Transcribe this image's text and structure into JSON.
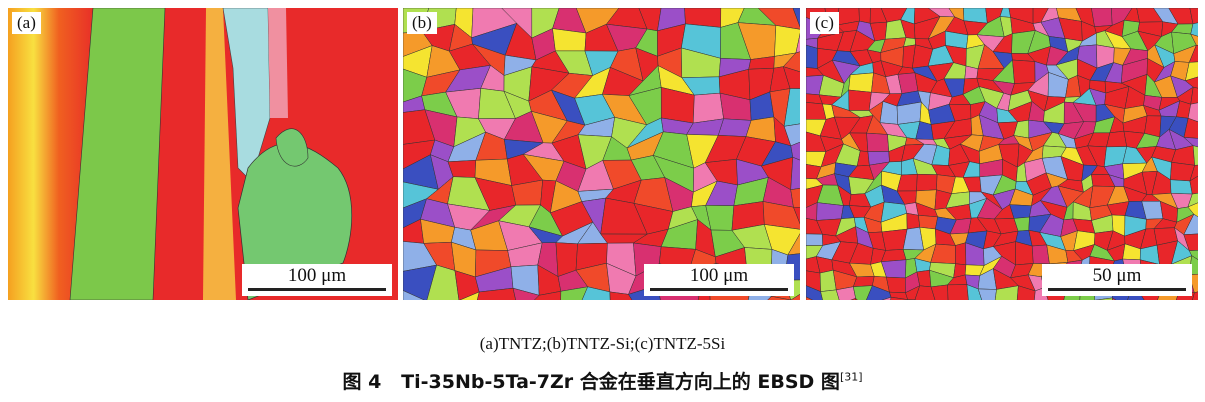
{
  "panels": [
    {
      "label": "(a)",
      "scale": "100 μm"
    },
    {
      "label": "(b)",
      "scale": "100 μm"
    },
    {
      "label": "(c)",
      "scale": "50 μm"
    }
  ],
  "subcaption": "(a)TNTZ;(b)TNTZ-Si;(c)TNTZ-5Si",
  "caption": {
    "prefix": "图 4",
    "text": "Ti-35Nb-5Ta-7Zr 合金在垂直方向上的 EBSD 图",
    "ref": "[31]"
  },
  "palette": [
    "#e8262a",
    "#f04a2a",
    "#7ccd4a",
    "#3a4fc0",
    "#f5e430",
    "#9b4fc8",
    "#f07ab0",
    "#56c4d8",
    "#f59a2a",
    "#b0e050",
    "#d83070",
    "#8fb0e8"
  ]
}
